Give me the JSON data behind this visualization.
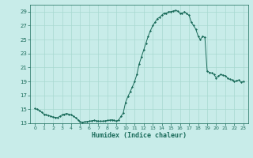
{
  "xlabel": "Humidex (Indice chaleur)",
  "bg_color": "#c8ece9",
  "grid_color": "#a8d8d0",
  "line_color": "#1a6b5a",
  "marker_color": "#1a6b5a",
  "ylim": [
    13,
    30
  ],
  "xlim": [
    -0.5,
    23.5
  ],
  "yticks": [
    13,
    15,
    17,
    19,
    21,
    23,
    25,
    27,
    29
  ],
  "xticks": [
    0,
    1,
    2,
    3,
    4,
    5,
    6,
    7,
    8,
    9,
    10,
    11,
    12,
    13,
    14,
    15,
    16,
    17,
    18,
    19,
    20,
    21,
    22,
    23
  ],
  "x": [
    0,
    0.25,
    0.5,
    0.75,
    1,
    1.25,
    1.5,
    1.75,
    2,
    2.25,
    2.5,
    2.75,
    3,
    3.25,
    3.5,
    3.75,
    4,
    4.25,
    4.5,
    4.75,
    5,
    5.25,
    5.5,
    5.75,
    6,
    6.25,
    6.5,
    6.75,
    7,
    7.25,
    7.5,
    7.75,
    8,
    8.25,
    8.5,
    8.75,
    9,
    9.25,
    9.5,
    9.75,
    10,
    10.25,
    10.5,
    10.75,
    11,
    11.25,
    11.5,
    11.75,
    12,
    12.25,
    12.5,
    12.75,
    13,
    13.25,
    13.5,
    13.75,
    14,
    14.25,
    14.5,
    14.75,
    15,
    15.25,
    15.5,
    15.75,
    16,
    16.25,
    16.5,
    16.75,
    17,
    17.25,
    17.5,
    17.75,
    18,
    18.25,
    18.5,
    18.75,
    19,
    19.25,
    19.5,
    19.75,
    20,
    20.25,
    20.5,
    20.75,
    21,
    21.25,
    21.5,
    21.75,
    22,
    22.25,
    22.5,
    22.75,
    23
  ],
  "y": [
    15.1,
    15.0,
    14.8,
    14.6,
    14.3,
    14.2,
    14.1,
    14.0,
    13.9,
    13.85,
    13.8,
    14.0,
    14.2,
    14.3,
    14.4,
    14.3,
    14.2,
    14.0,
    13.8,
    13.5,
    13.2,
    13.15,
    13.2,
    13.25,
    13.3,
    13.35,
    13.4,
    13.35,
    13.3,
    13.3,
    13.3,
    13.35,
    13.4,
    13.45,
    13.5,
    13.4,
    13.3,
    13.5,
    14.0,
    14.5,
    16.0,
    16.8,
    17.5,
    18.2,
    19.0,
    20.0,
    21.5,
    22.5,
    23.5,
    24.5,
    25.5,
    26.3,
    27.0,
    27.5,
    28.0,
    28.2,
    28.5,
    28.8,
    28.8,
    29.0,
    29.0,
    29.1,
    29.2,
    29.1,
    28.8,
    28.8,
    29.0,
    28.7,
    28.5,
    27.5,
    27.0,
    26.5,
    25.5,
    25.0,
    25.5,
    25.3,
    20.5,
    20.3,
    20.2,
    20.0,
    19.5,
    19.8,
    20.0,
    19.9,
    19.8,
    19.5,
    19.3,
    19.2,
    19.0,
    19.1,
    19.2,
    18.9,
    19.0
  ]
}
